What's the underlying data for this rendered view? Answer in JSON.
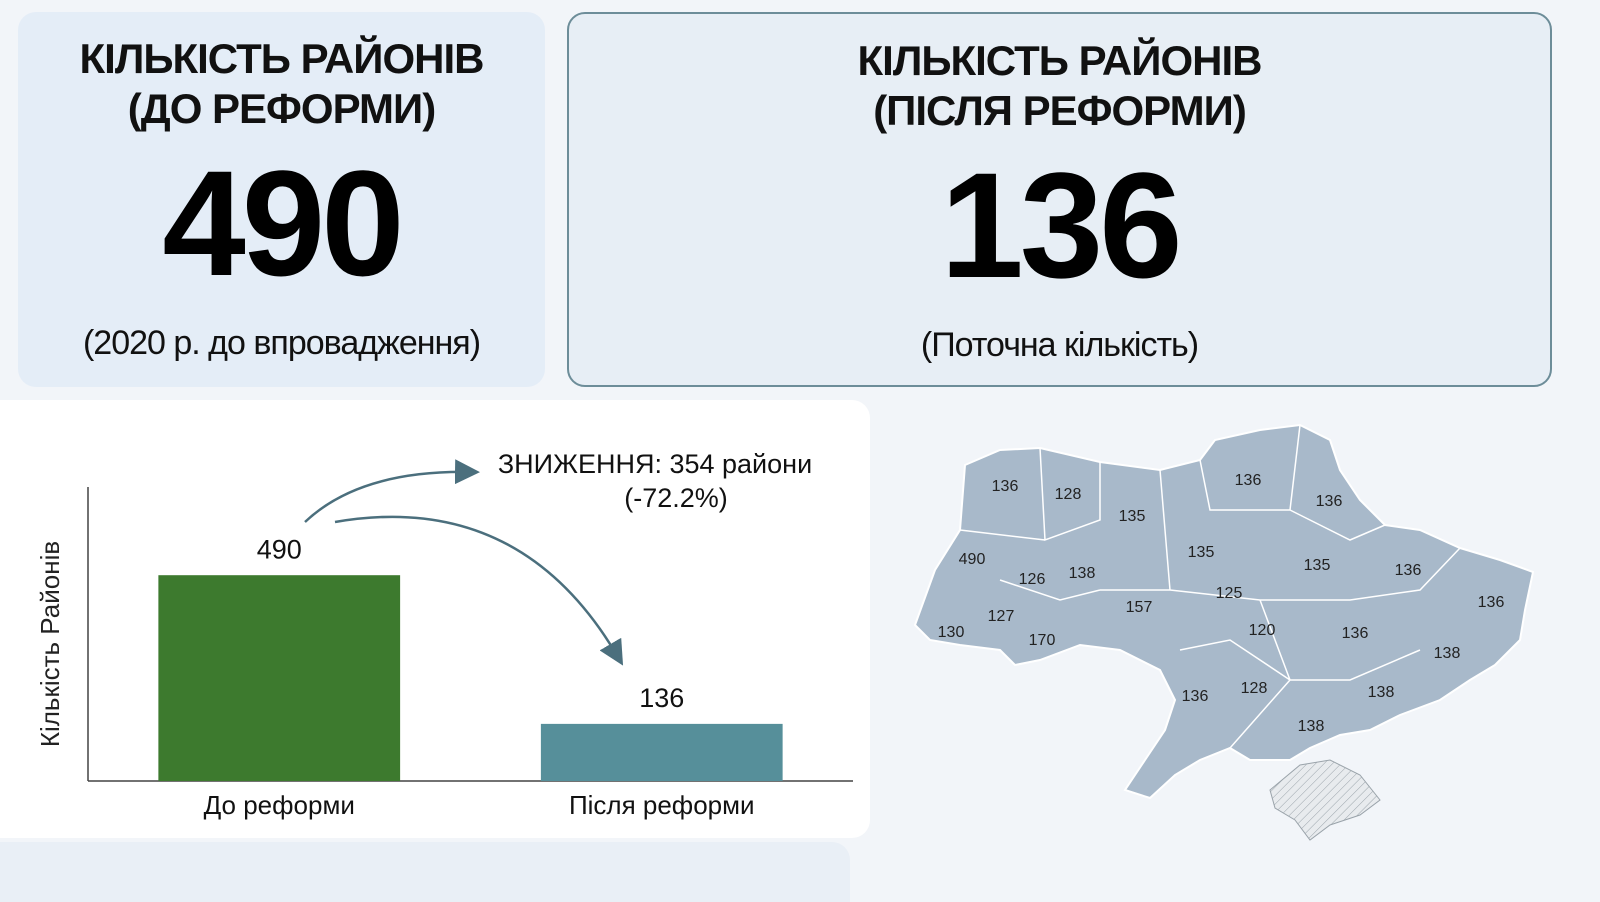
{
  "cards": [
    {
      "title": [
        "КІЛЬКІСТЬ РАЙОНІВ",
        "(ДО РЕФОРМИ)"
      ],
      "number": 490,
      "note": "(2020 р. до впровадження)"
    },
    {
      "title": [
        "КІЛЬКІСТЬ РАЙОНІВ",
        "(ПІСЛЯ РЕФОРМИ)"
      ],
      "number": 136,
      "note": "(Поточна кількість)"
    }
  ],
  "chart_data": {
    "type": "bar",
    "ylabel": "Кількість Районів",
    "categories": [
      "До реформи",
      "Після реформи"
    ],
    "values": [
      490,
      136
    ],
    "colors": [
      "#3d7a2e",
      "#568f9a"
    ],
    "ylim": [
      0,
      700
    ],
    "annotations": [
      "ЗНИЖЕННЯ: 354 райони",
      "(-72.2%)"
    ]
  },
  "map": {
    "labels": [
      136,
      128,
      135,
      136,
      136,
      490,
      126,
      138,
      135,
      135,
      136,
      157,
      125,
      136,
      127,
      130,
      170,
      120,
      136,
      138,
      136,
      128,
      138,
      138
    ]
  }
}
